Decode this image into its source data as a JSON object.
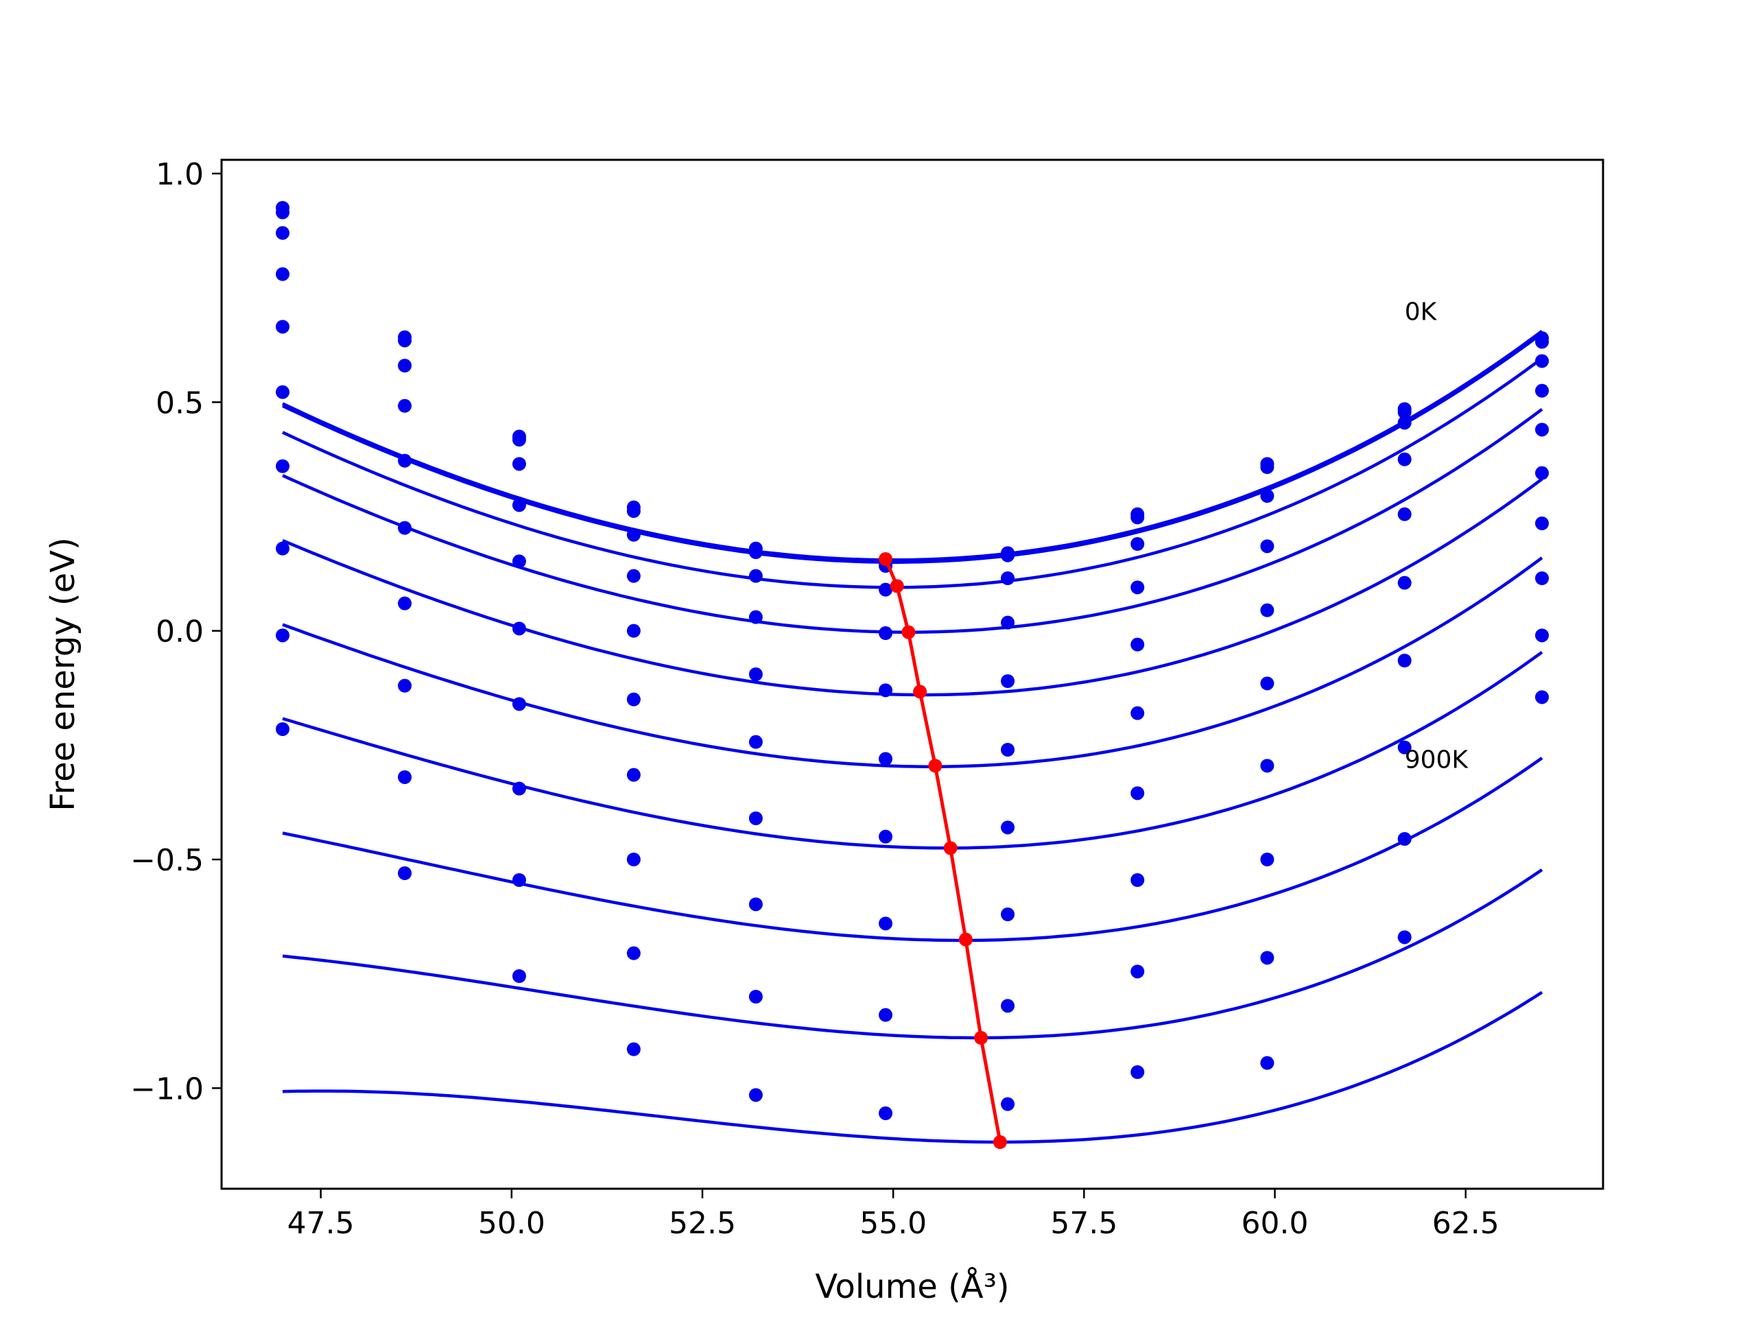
{
  "chart_data": {
    "type": "line",
    "xlabel": "Volume (Å³)",
    "ylabel": "Free energy (eV)",
    "xlim": [
      46.2,
      64.3
    ],
    "ylim": [
      -1.22,
      1.03
    ],
    "xticks": [
      "47.5",
      "50.0",
      "52.5",
      "55.0",
      "57.5",
      "60.0",
      "62.5"
    ],
    "xtick_values": [
      47.5,
      50.0,
      52.5,
      55.0,
      57.5,
      60.0,
      62.5
    ],
    "yticks": [
      "−1.0",
      "−0.5",
      "0.0",
      "0.5",
      "1.0"
    ],
    "ytick_values": [
      -1.0,
      -0.5,
      0.0,
      0.5,
      1.0
    ],
    "colors": {
      "curves": "#0000ee",
      "points": "#0000ee",
      "minimum": "#ff0000"
    },
    "points_x": [
      47.0,
      48.6,
      50.1,
      51.6,
      53.2,
      54.9,
      56.5,
      58.2,
      59.9,
      61.7,
      63.5
    ],
    "fit_x_range": [
      47.0,
      63.5
    ],
    "annotations": [
      {
        "text": "0K",
        "x": 61.7,
        "y": 0.68
      },
      {
        "text": "900K",
        "x": 61.7,
        "y": -0.3
      }
    ],
    "series": [
      {
        "v0": 55.0,
        "e0": 0.155,
        "a": 0.00611,
        "b": 9.6e-05,
        "points_y": [
          0.925,
          0.642,
          0.425,
          0.27,
          0.18,
          0.15,
          0.17,
          0.255,
          0.365,
          0.485,
          0.64
        ]
      },
      {
        "v0": 55.0,
        "e0": 0.15,
        "a": 0.00611,
        "b": 9.6e-05,
        "points_y": [
          0.915,
          0.635,
          0.418,
          0.262,
          0.172,
          0.142,
          0.165,
          0.248,
          0.358,
          0.478,
          0.632
        ]
      },
      {
        "v0": 55.0,
        "e0": 0.095,
        "a": 0.00609,
        "b": 9.9e-05,
        "points_y": [
          0.87,
          0.58,
          0.365,
          0.21,
          0.12,
          0.09,
          0.115,
          0.19,
          0.295,
          0.455,
          0.59
        ]
      },
      {
        "v0": 55.2,
        "e0": -0.003,
        "a": 0.00608,
        "b": 0.00012,
        "points_y": [
          0.78,
          0.492,
          0.275,
          0.12,
          0.03,
          -0.005,
          0.018,
          0.095,
          0.185,
          0.375,
          0.525
        ]
      },
      {
        "v0": 55.4,
        "e0": -0.14,
        "a": 0.00601,
        "b": 0.000146,
        "points_y": [
          0.665,
          0.372,
          0.152,
          0.0,
          -0.095,
          -0.13,
          -0.11,
          -0.03,
          0.045,
          0.255,
          0.44
        ]
      },
      {
        "v0": 55.5,
        "e0": -0.297,
        "a": 0.00576,
        "b": 0.000172,
        "points_y": [
          0.522,
          0.225,
          0.005,
          -0.15,
          -0.243,
          -0.28,
          -0.26,
          -0.18,
          -0.115,
          0.105,
          0.345
        ]
      },
      {
        "v0": 55.7,
        "e0": -0.475,
        "a": 0.00548,
        "b": 0.0002,
        "points_y": [
          0.36,
          0.06,
          -0.16,
          -0.315,
          -0.41,
          -0.45,
          -0.43,
          -0.355,
          -0.295,
          -0.065,
          0.235
        ]
      },
      {
        "v0": 55.9,
        "e0": -0.677,
        "a": 0.00509,
        "b": 0.000239,
        "points_y": [
          0.18,
          -0.12,
          -0.345,
          -0.5,
          -0.598,
          -0.64,
          -0.62,
          -0.545,
          -0.5,
          -0.255,
          0.115
        ]
      },
      {
        "v0": 56.1,
        "e0": -0.89,
        "a": 0.00467,
        "b": 0.000276,
        "points_y": [
          -0.01,
          -0.32,
          -0.545,
          -0.705,
          -0.8,
          -0.84,
          -0.82,
          -0.745,
          -0.715,
          -0.455,
          -0.01
        ]
      },
      {
        "v0": 56.4,
        "e0": -1.118,
        "a": 0.00424,
        "b": 0.000318,
        "points_y": [
          -0.215,
          -0.53,
          -0.755,
          -0.915,
          -1.015,
          -1.055,
          -1.035,
          -0.965,
          -0.945,
          -0.67,
          -0.145
        ]
      }
    ],
    "minimum_line": {
      "x": [
        54.9,
        55.05,
        55.2,
        55.35,
        55.55,
        55.75,
        55.95,
        56.15,
        56.4
      ],
      "y": [
        0.157,
        0.098,
        -0.003,
        -0.133,
        -0.295,
        -0.475,
        -0.675,
        -0.89,
        -1.118
      ]
    }
  }
}
